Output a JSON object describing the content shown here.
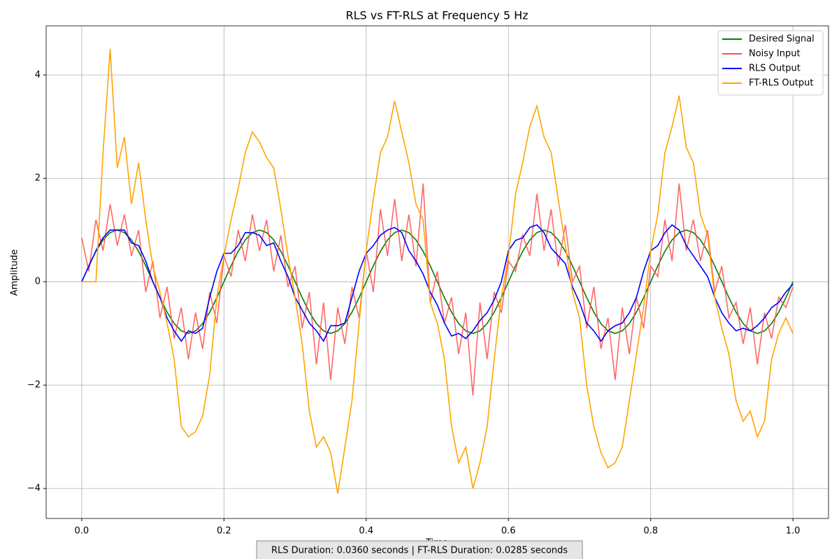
{
  "chart_data": {
    "type": "line",
    "title": "RLS vs FT-RLS at Frequency 5 Hz",
    "xlabel": "Time",
    "ylabel": "Amplitude",
    "annotation": "RLS Duration: 0.0360 seconds | FT-RLS Duration: 0.0285 seconds",
    "grid": true,
    "legend": "upper right",
    "xlim": [
      -0.05,
      1.05
    ],
    "ylim": [
      -4.58,
      4.95
    ],
    "xticks": [
      {
        "value": 0,
        "label": "0.0"
      },
      0.2,
      0.4,
      0.6,
      0.8,
      {
        "value": 1,
        "label": "1.0"
      }
    ],
    "yticks": [
      {
        "value": -4,
        "label": "−4"
      },
      {
        "value": -2,
        "label": "−2"
      },
      0,
      2,
      4
    ],
    "x": [
      0,
      0.01,
      0.02,
      0.03,
      0.04,
      0.05,
      0.06,
      0.07,
      0.08,
      0.09,
      0.1,
      0.11,
      0.12,
      0.13,
      0.14,
      0.15,
      0.16,
      0.17,
      0.18,
      0.19,
      0.2,
      0.21,
      0.22,
      0.23,
      0.24,
      0.25,
      0.26,
      0.27,
      0.28,
      0.29,
      0.3,
      0.31,
      0.32,
      0.33,
      0.34,
      0.35,
      0.36,
      0.37,
      0.38,
      0.39,
      0.4,
      0.41,
      0.42,
      0.43,
      0.44,
      0.45,
      0.46,
      0.47,
      0.48,
      0.49,
      0.5,
      0.51,
      0.52,
      0.53,
      0.54,
      0.55,
      0.56,
      0.57,
      0.58,
      0.59,
      0.6,
      0.61,
      0.62,
      0.63,
      0.64,
      0.65,
      0.66,
      0.67,
      0.68,
      0.69,
      0.7,
      0.71,
      0.72,
      0.73,
      0.74,
      0.75,
      0.76,
      0.77,
      0.78,
      0.79,
      0.8,
      0.81,
      0.82,
      0.83,
      0.84,
      0.85,
      0.86,
      0.87,
      0.88,
      0.89,
      0.9,
      0.91,
      0.92,
      0.93,
      0.94,
      0.95,
      0.96,
      0.97,
      0.98,
      0.99,
      1
    ],
    "series": [
      {
        "name": "Desired Signal",
        "color": "#008000",
        "values": [
          0,
          0.309,
          0.588,
          0.809,
          0.951,
          1,
          0.951,
          0.809,
          0.588,
          0.309,
          0,
          -0.309,
          -0.588,
          -0.809,
          -0.951,
          -1,
          -0.951,
          -0.809,
          -0.588,
          -0.309,
          0,
          0.309,
          0.588,
          0.809,
          0.951,
          1,
          0.951,
          0.809,
          0.588,
          0.309,
          0,
          -0.309,
          -0.588,
          -0.809,
          -0.951,
          -1,
          -0.951,
          -0.809,
          -0.588,
          -0.309,
          0,
          0.309,
          0.588,
          0.809,
          0.951,
          1,
          0.951,
          0.809,
          0.588,
          0.309,
          0,
          -0.309,
          -0.588,
          -0.809,
          -0.951,
          -1,
          -0.951,
          -0.809,
          -0.588,
          -0.309,
          0,
          0.309,
          0.588,
          0.809,
          0.951,
          1,
          0.951,
          0.809,
          0.588,
          0.309,
          0,
          -0.309,
          -0.588,
          -0.809,
          -0.951,
          -1,
          -0.951,
          -0.809,
          -0.588,
          -0.309,
          0,
          0.309,
          0.588,
          0.809,
          0.951,
          1,
          0.951,
          0.809,
          0.588,
          0.309,
          0,
          -0.309,
          -0.588,
          -0.809,
          -0.951,
          -1,
          -0.951,
          -0.809,
          -0.588,
          -0.309,
          0
        ]
      },
      {
        "name": "Noisy Input",
        "color": "#ff4d4d",
        "values": [
          0.85,
          0.2,
          1.2,
          0.6,
          1.5,
          0.7,
          1.3,
          0.5,
          1.0,
          -0.2,
          0.4,
          -0.7,
          -0.1,
          -1.1,
          -0.5,
          -1.5,
          -0.6,
          -1.3,
          -0.2,
          -0.8,
          0.5,
          0.1,
          1.0,
          0.4,
          1.3,
          0.6,
          1.2,
          0.2,
          0.9,
          -0.1,
          0.3,
          -0.9,
          -0.2,
          -1.6,
          -0.4,
          -1.9,
          -0.5,
          -1.2,
          -0.1,
          -0.7,
          0.6,
          -0.2,
          1.4,
          0.5,
          1.6,
          0.4,
          1.3,
          0.3,
          1.9,
          -0.4,
          0.2,
          -0.8,
          -0.3,
          -1.4,
          -0.6,
          -2.2,
          -0.4,
          -1.5,
          -0.2,
          -0.6,
          0.4,
          0.2,
          0.9,
          0.5,
          1.7,
          0.6,
          1.4,
          0.3,
          1.1,
          0.0,
          0.3,
          -0.9,
          -0.1,
          -1.3,
          -0.7,
          -1.9,
          -0.5,
          -1.4,
          -0.3,
          -0.9,
          0.3,
          0.1,
          1.2,
          0.4,
          1.9,
          0.6,
          1.2,
          0.4,
          1.0,
          -0.2,
          0.3,
          -0.7,
          -0.4,
          -1.2,
          -0.5,
          -1.6,
          -0.6,
          -1.1,
          -0.3,
          -0.5,
          -0.1
        ]
      },
      {
        "name": "RLS Output",
        "color": "#0000ff",
        "values": [
          0,
          0.3,
          0.6,
          0.85,
          1.0,
          1.0,
          1.0,
          0.75,
          0.7,
          0.4,
          0,
          -0.3,
          -0.7,
          -0.95,
          -1.15,
          -0.95,
          -1.0,
          -0.9,
          -0.3,
          0.2,
          0.55,
          0.55,
          0.7,
          0.95,
          0.95,
          0.9,
          0.7,
          0.75,
          0.4,
          0.1,
          -0.3,
          -0.55,
          -0.8,
          -0.95,
          -1.15,
          -0.85,
          -0.85,
          -0.8,
          -0.3,
          0.2,
          0.55,
          0.7,
          0.9,
          1.0,
          1.05,
          0.95,
          0.6,
          0.4,
          0.15,
          -0.2,
          -0.45,
          -0.8,
          -1.05,
          -1.0,
          -1.1,
          -0.95,
          -0.75,
          -0.6,
          -0.35,
          0.0,
          0.6,
          0.8,
          0.85,
          1.05,
          1.1,
          0.95,
          0.65,
          0.5,
          0.35,
          -0.1,
          -0.4,
          -0.8,
          -0.95,
          -1.15,
          -0.95,
          -0.85,
          -0.8,
          -0.6,
          -0.3,
          0.2,
          0.6,
          0.7,
          0.95,
          1.1,
          1.0,
          0.7,
          0.5,
          0.3,
          0.1,
          -0.3,
          -0.6,
          -0.8,
          -0.95,
          -0.9,
          -0.95,
          -0.85,
          -0.7,
          -0.5,
          -0.4,
          -0.2,
          -0.05
        ]
      },
      {
        "name": "FT-RLS Output",
        "color": "#ffa500",
        "values": [
          0,
          0,
          0,
          2.5,
          4.5,
          2.2,
          2.8,
          1.5,
          2.3,
          1.2,
          0.3,
          -0.2,
          -0.8,
          -1.5,
          -2.8,
          -3.0,
          -2.9,
          -2.6,
          -1.8,
          -0.3,
          0.5,
          1.2,
          1.8,
          2.5,
          2.9,
          2.7,
          2.4,
          2.2,
          1.4,
          0.5,
          -0.3,
          -1.2,
          -2.5,
          -3.2,
          -3.0,
          -3.3,
          -4.1,
          -3.2,
          -2.3,
          -0.8,
          0.6,
          1.6,
          2.5,
          2.8,
          3.5,
          2.9,
          2.3,
          1.5,
          1.2,
          -0.4,
          -0.8,
          -1.5,
          -2.8,
          -3.5,
          -3.2,
          -4.0,
          -3.5,
          -2.8,
          -1.5,
          -0.3,
          0.5,
          1.7,
          2.3,
          3.0,
          3.4,
          2.8,
          2.5,
          1.6,
          0.7,
          -0.2,
          -0.7,
          -2.0,
          -2.8,
          -3.3,
          -3.6,
          -3.5,
          -3.2,
          -2.3,
          -1.4,
          -0.5,
          0.6,
          1.3,
          2.5,
          3.0,
          3.6,
          2.6,
          2.3,
          1.3,
          0.9,
          -0.3,
          -0.9,
          -1.4,
          -2.3,
          -2.7,
          -2.5,
          -3.0,
          -2.7,
          -1.5,
          -1.0,
          -0.7,
          -1.0
        ]
      }
    ]
  }
}
